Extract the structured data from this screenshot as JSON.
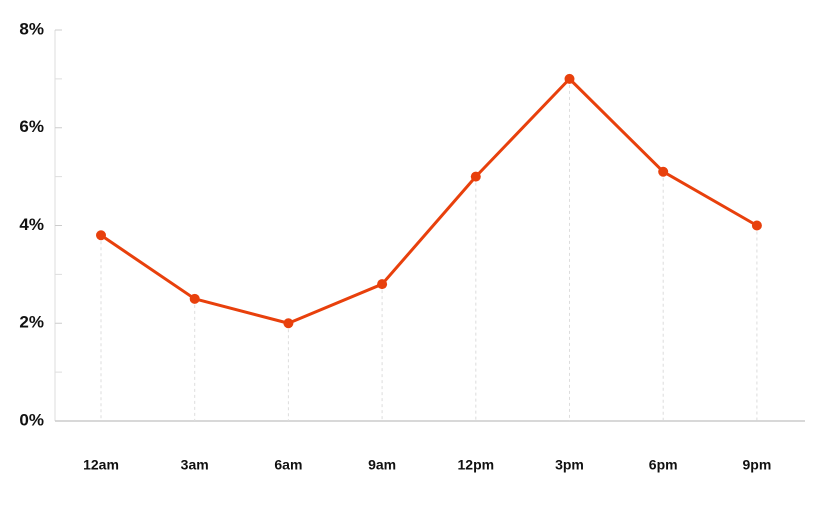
{
  "chart_data": {
    "type": "line",
    "categories": [
      "12am",
      "3am",
      "6am",
      "9am",
      "12pm",
      "3pm",
      "6pm",
      "9pm"
    ],
    "series": [
      {
        "color": "#e8400c",
        "values": [
          3.8,
          2.5,
          2.0,
          2.8,
          5.0,
          7.0,
          5.1,
          4.0
        ]
      }
    ],
    "ylim": [
      0,
      8
    ],
    "yticks": [
      {
        "value": 0,
        "label": "0%"
      },
      {
        "value": 2,
        "label": "2%"
      },
      {
        "value": 4,
        "label": "4%"
      },
      {
        "value": 6,
        "label": "6%"
      },
      {
        "value": 8,
        "label": "8%"
      }
    ],
    "yminorticks": [
      1,
      3,
      5,
      7
    ],
    "drop_lines": true
  }
}
